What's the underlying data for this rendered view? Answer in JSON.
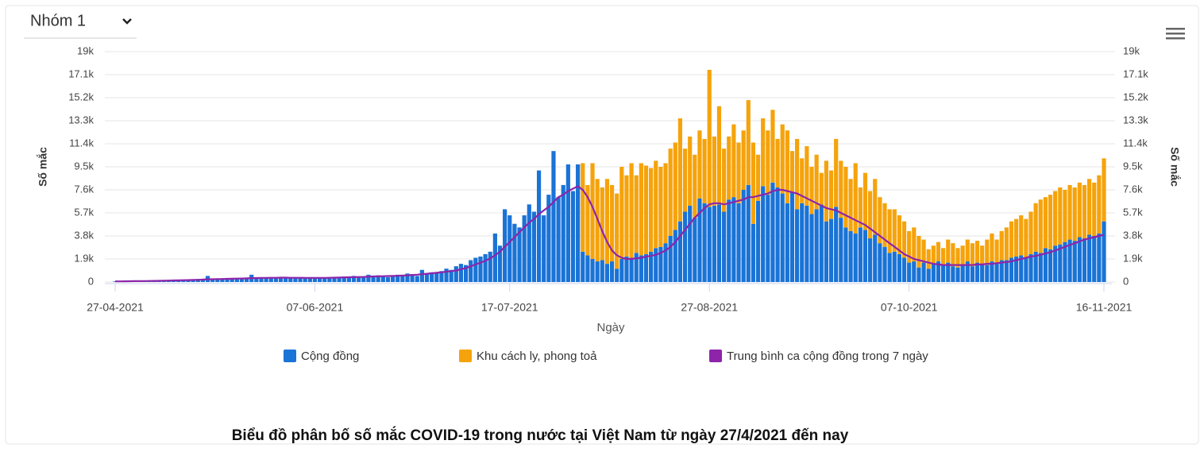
{
  "ui": {
    "dropdown": "Nhóm 1"
  },
  "chart_data": {
    "type": "bar",
    "stacked": true,
    "title": "Biểu đồ phân bố số mắc COVID-19 trong nước tại Việt Nam từ ngày 27/4/2021 đến nay",
    "xlabel": "Ngày",
    "ylabel": "Số mắc",
    "y2label": "Số mắc",
    "categories": [
      "27-04-2021",
      null,
      null,
      null,
      null,
      null,
      null,
      null,
      null,
      null,
      null,
      null,
      null,
      null,
      null,
      null,
      null,
      null,
      null,
      null,
      null,
      null,
      null,
      null,
      null,
      null,
      null,
      null,
      null,
      null,
      null,
      null,
      null,
      null,
      null,
      null,
      null,
      null,
      null,
      null,
      null,
      "07-06-2021",
      null,
      null,
      null,
      null,
      null,
      null,
      null,
      null,
      null,
      null,
      null,
      null,
      null,
      null,
      null,
      null,
      null,
      null,
      null,
      null,
      null,
      null,
      null,
      null,
      null,
      null,
      null,
      null,
      null,
      null,
      null,
      null,
      null,
      null,
      null,
      null,
      null,
      null,
      null,
      "17-07-2021",
      null,
      null,
      null,
      null,
      null,
      null,
      null,
      null,
      null,
      null,
      null,
      null,
      null,
      null,
      null,
      null,
      null,
      null,
      null,
      null,
      null,
      null,
      null,
      null,
      null,
      null,
      null,
      null,
      null,
      null,
      null,
      null,
      null,
      null,
      null,
      null,
      null,
      null,
      null,
      null,
      "27-08-2021",
      null,
      null,
      null,
      null,
      null,
      null,
      null,
      null,
      null,
      null,
      null,
      null,
      null,
      null,
      null,
      null,
      null,
      null,
      null,
      null,
      null,
      null,
      null,
      null,
      null,
      null,
      null,
      null,
      null,
      null,
      null,
      null,
      null,
      null,
      null,
      null,
      null,
      null,
      null,
      null,
      "07-10-2021",
      null,
      null,
      null,
      null,
      null,
      null,
      null,
      null,
      null,
      null,
      null,
      null,
      null,
      null,
      null,
      null,
      null,
      null,
      null,
      null,
      null,
      null,
      null,
      null,
      null,
      null,
      null,
      null,
      null,
      null,
      null,
      null,
      null,
      null,
      null,
      null,
      null,
      null,
      null,
      "16-11-2021"
    ],
    "series": [
      {
        "name": "Cộng đồng",
        "color": "#1a73d6",
        "type": "bar",
        "values": [
          50,
          60,
          80,
          40,
          60,
          90,
          70,
          100,
          80,
          120,
          150,
          130,
          160,
          120,
          180,
          200,
          170,
          250,
          230,
          500,
          200,
          260,
          280,
          240,
          300,
          260,
          320,
          300,
          600,
          350,
          380,
          300,
          400,
          350,
          380,
          420,
          300,
          350,
          320,
          380,
          300,
          350,
          300,
          320,
          400,
          380,
          350,
          450,
          420,
          500,
          380,
          450,
          600,
          500,
          550,
          480,
          400,
          520,
          600,
          550,
          700,
          650,
          500,
          1000,
          700,
          800,
          750,
          900,
          1100,
          1000,
          1300,
          1500,
          1400,
          1800,
          2000,
          2100,
          2300,
          2500,
          4000,
          3000,
          6000,
          5500,
          4800,
          4500,
          5500,
          6400,
          5800,
          9200,
          5500,
          7200,
          10800,
          7000,
          8000,
          9700,
          7500,
          9700,
          2500,
          2200,
          1900,
          1700,
          1800,
          1500,
          1700,
          1100,
          1900,
          2100,
          2000,
          2400,
          2200,
          2300,
          2500,
          2800,
          2900,
          3200,
          3800,
          4300,
          5000,
          5800,
          6300,
          5300,
          6900,
          6500,
          6200,
          6300,
          6400,
          5800,
          6800,
          7000,
          6500,
          7600,
          8000,
          4800,
          6700,
          7900,
          7200,
          8200,
          7800,
          7300,
          6500,
          7400,
          6000,
          6500,
          6300,
          5600,
          6000,
          6400,
          5000,
          5200,
          6200,
          5300,
          4500,
          4200,
          4000,
          4500,
          4300,
          3600,
          3900,
          3200,
          2900,
          2400,
          2500,
          2300,
          2000,
          1600,
          1700,
          1200,
          1600,
          1100,
          1500,
          1700,
          1400,
          1600,
          1300,
          1200,
          1400,
          1700,
          1300,
          1600,
          1500,
          1400,
          1700,
          1500,
          1800,
          1800,
          2000,
          2100,
          2200,
          2000,
          2300,
          2500,
          2400,
          2800,
          2700,
          3000,
          3100,
          3300,
          3500,
          3400,
          3700,
          3600,
          3900,
          3800,
          4000,
          5000
        ]
      },
      {
        "name": "Khu cách ly, phong toả",
        "color": "#f5a30c",
        "type": "bar",
        "values": [
          0,
          0,
          0,
          0,
          0,
          0,
          0,
          0,
          0,
          0,
          0,
          0,
          0,
          0,
          0,
          0,
          0,
          0,
          0,
          0,
          0,
          0,
          0,
          0,
          0,
          0,
          0,
          0,
          0,
          0,
          0,
          0,
          0,
          0,
          0,
          0,
          0,
          0,
          0,
          0,
          0,
          0,
          0,
          0,
          0,
          0,
          0,
          0,
          0,
          0,
          0,
          0,
          0,
          0,
          0,
          0,
          0,
          0,
          0,
          0,
          0,
          0,
          0,
          0,
          0,
          0,
          0,
          0,
          0,
          0,
          0,
          0,
          0,
          0,
          0,
          0,
          0,
          0,
          0,
          0,
          0,
          0,
          0,
          0,
          0,
          0,
          0,
          0,
          0,
          0,
          0,
          0,
          0,
          0,
          0,
          0,
          7300,
          5800,
          7900,
          6800,
          6000,
          7000,
          6300,
          6200,
          7600,
          6700,
          7800,
          6400,
          7600,
          7300,
          6900,
          7200,
          6600,
          6600,
          7200,
          7200,
          8500,
          5200,
          5700,
          5200,
          5600,
          5300,
          11300,
          5700,
          8100,
          5200,
          5200,
          6000,
          5000,
          4900,
          7000,
          6700,
          3800,
          5600,
          5300,
          6000,
          4000,
          5700,
          6000,
          3400,
          5800,
          3700,
          4900,
          3900,
          4500,
          2600,
          5000,
          4000,
          5600,
          4700,
          5000,
          4300,
          5800,
          3300,
          4700,
          3900,
          4600,
          3800,
          3600,
          3600,
          3500,
          3200,
          3000,
          2600,
          2800,
          2600,
          1900,
          1600,
          1500,
          1600,
          1400,
          1900,
          1900,
          1600,
          1600,
          1800,
          1900,
          1800,
          1500,
          2100,
          2300,
          2000,
          2400,
          2700,
          3000,
          3100,
          3300,
          3200,
          3500,
          4000,
          4400,
          4200,
          4500,
          4500,
          4700,
          4300,
          4500,
          4400,
          4500,
          4400,
          4600,
          4400,
          4800,
          5200
        ]
      },
      {
        "name": "Trung bình ca cộng đồng trong 7 ngày",
        "color": "#8e24aa",
        "type": "line",
        "values": [
          50,
          55,
          60,
          65,
          70,
          75,
          80,
          85,
          90,
          100,
          110,
          120,
          130,
          140,
          150,
          160,
          170,
          180,
          200,
          220,
          230,
          240,
          250,
          260,
          270,
          280,
          290,
          300,
          320,
          330,
          340,
          340,
          350,
          350,
          360,
          360,
          350,
          350,
          350,
          340,
          340,
          340,
          340,
          340,
          350,
          360,
          370,
          380,
          390,
          400,
          410,
          420,
          440,
          460,
          470,
          480,
          490,
          500,
          510,
          530,
          550,
          580,
          600,
          650,
          680,
          720,
          760,
          800,
          850,
          900,
          950,
          1050,
          1150,
          1300,
          1450,
          1600,
          1750,
          1950,
          2200,
          2500,
          2900,
          3300,
          3700,
          4100,
          4500,
          4900,
          5200,
          5600,
          5900,
          6200,
          6600,
          7000,
          7200,
          7500,
          7700,
          7900,
          7600,
          7000,
          6200,
          5200,
          4200,
          3300,
          2600,
          2200,
          2000,
          1900,
          1900,
          1950,
          2000,
          2100,
          2150,
          2250,
          2400,
          2600,
          2900,
          3300,
          3800,
          4300,
          4800,
          5300,
          5700,
          6100,
          6400,
          6500,
          6500,
          6400,
          6500,
          6600,
          6700,
          6800,
          7000,
          7000,
          7100,
          7200,
          7300,
          7500,
          7600,
          7600,
          7500,
          7400,
          7300,
          7100,
          6900,
          6700,
          6500,
          6300,
          6100,
          6000,
          5900,
          5700,
          5500,
          5300,
          5100,
          4900,
          4700,
          4400,
          4100,
          3800,
          3500,
          3200,
          2900,
          2600,
          2300,
          2100,
          1900,
          1800,
          1700,
          1600,
          1500,
          1450,
          1400,
          1400,
          1400,
          1400,
          1400,
          1400,
          1400,
          1450,
          1450,
          1500,
          1500,
          1550,
          1600,
          1650,
          1700,
          1800,
          1900,
          2000,
          2100,
          2150,
          2250,
          2350,
          2450,
          2600,
          2750,
          2900,
          3050,
          3200,
          3350,
          3500,
          3600,
          3700,
          3800,
          3900
        ]
      }
    ],
    "ylim": [
      0,
      19000
    ],
    "yticks": [
      0,
      {
        "value": 1900,
        "label": "1.9k"
      },
      {
        "value": 3800,
        "label": "3.8k"
      },
      {
        "value": 5700,
        "label": "5.7k"
      },
      {
        "value": 7600,
        "label": "7.6k"
      },
      {
        "value": 9500,
        "label": "9.5k"
      },
      {
        "value": 11400,
        "label": "11.4k"
      },
      {
        "value": 13300,
        "label": "13.3k"
      },
      {
        "value": 15200,
        "label": "15.2k"
      },
      {
        "value": 17100,
        "label": "17.1k"
      },
      {
        "value": 19000,
        "label": "19k"
      }
    ],
    "y2lim": [
      0,
      19000
    ],
    "y2ticks": [
      0,
      {
        "value": 1900,
        "label": "1.9k"
      },
      {
        "value": 3800,
        "label": "3.8k"
      },
      {
        "value": 5700,
        "label": "5.7k"
      },
      {
        "value": 7600,
        "label": "7.6k"
      },
      {
        "value": 9500,
        "label": "9.5k"
      },
      {
        "value": 11400,
        "label": "11.4k"
      },
      {
        "value": 13300,
        "label": "13.3k"
      },
      {
        "value": 15200,
        "label": "15.2k"
      },
      {
        "value": 17100,
        "label": "17.1k"
      },
      {
        "value": 19000,
        "label": "19k"
      }
    ],
    "grid": true,
    "legend": "bottom"
  }
}
